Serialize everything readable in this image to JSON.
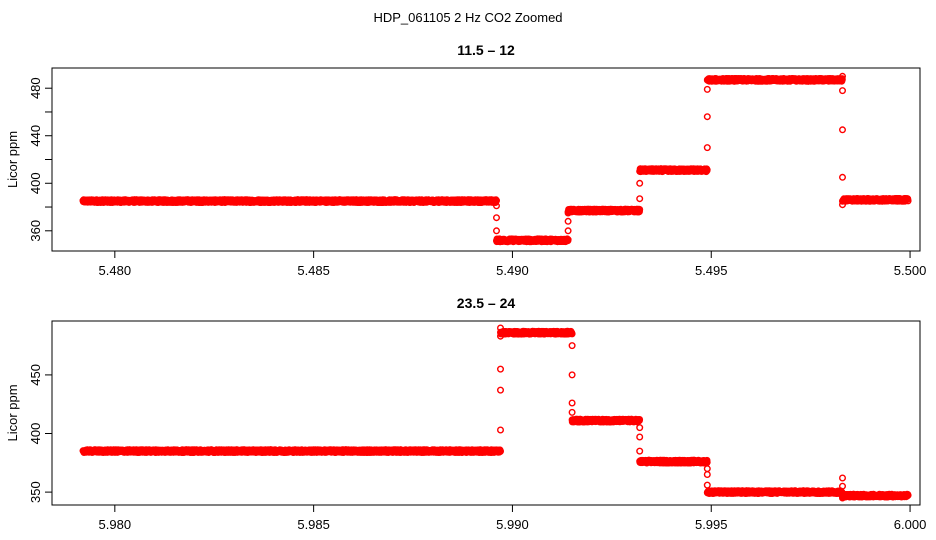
{
  "title": "HDP_061105  2 Hz CO2 Zoomed",
  "marker_color": "#ff0000",
  "chart_data": [
    {
      "type": "scatter",
      "title": "11.5 – 12",
      "xlabel": "",
      "ylabel": "Licor ppm",
      "xlim": [
        5.47842,
        5.50025
      ],
      "ylim": [
        343,
        497
      ],
      "xticks": [
        5.48,
        5.485,
        5.49,
        5.495,
        5.5
      ],
      "xtick_labels": [
        "5.480",
        "5.485",
        "5.490",
        "5.495",
        "5.500"
      ],
      "yticks": [
        360,
        380,
        400,
        420,
        440,
        460,
        480
      ],
      "ytick_labels": [
        "360",
        "",
        "400",
        "",
        "440",
        "",
        "480"
      ],
      "grid": false,
      "plateaus": [
        {
          "x_start": 5.4792,
          "x_end": 5.4896,
          "y": 385
        },
        {
          "x_start": 5.4896,
          "x_end": 5.4914,
          "y": 352
        },
        {
          "x_start": 5.4914,
          "x_end": 5.4932,
          "y": 377
        },
        {
          "x_start": 5.4932,
          "x_end": 5.4949,
          "y": 411
        },
        {
          "x_start": 5.4949,
          "x_end": 5.4983,
          "y": 487
        },
        {
          "x_start": 5.4983,
          "x_end": 5.49995,
          "y": 386
        }
      ],
      "transition_points": {
        "x": [
          5.4896,
          5.4896,
          5.4896,
          5.4914,
          5.4914,
          5.4914,
          5.4932,
          5.4932,
          5.4949,
          5.4949,
          5.4949,
          5.4983,
          5.4983,
          5.4983,
          5.4983,
          5.4983
        ],
        "y": [
          381,
          371,
          360,
          360,
          368,
          375,
          387,
          400,
          430,
          456,
          479,
          490,
          478,
          445,
          405,
          382
        ]
      }
    },
    {
      "type": "scatter",
      "title": "23.5 – 24",
      "xlabel": "",
      "ylabel": "Licor ppm",
      "xlim": [
        5.97842,
        6.00025
      ],
      "ylim": [
        339,
        496
      ],
      "xticks": [
        5.98,
        5.985,
        5.99,
        5.995,
        6.0
      ],
      "xtick_labels": [
        "5.980",
        "5.985",
        "5.990",
        "5.995",
        "6.000"
      ],
      "yticks": [
        350,
        400,
        450
      ],
      "ytick_labels": [
        "350",
        "400",
        "450"
      ],
      "grid": false,
      "plateaus": [
        {
          "x_start": 5.9792,
          "x_end": 5.9897,
          "y": 385
        },
        {
          "x_start": 5.9897,
          "x_end": 5.9915,
          "y": 486
        },
        {
          "x_start": 5.9915,
          "x_end": 5.9932,
          "y": 411
        },
        {
          "x_start": 5.9932,
          "x_end": 5.9949,
          "y": 376
        },
        {
          "x_start": 5.9949,
          "x_end": 5.9983,
          "y": 350
        },
        {
          "x_start": 5.9983,
          "x_end": 5.99995,
          "y": 347
        }
      ],
      "transition_points": {
        "x": [
          5.9897,
          5.9897,
          5.9897,
          5.9897,
          5.9897,
          5.9915,
          5.9915,
          5.9915,
          5.9915,
          5.9932,
          5.9932,
          5.9932,
          5.9949,
          5.9949,
          5.9949,
          5.9983,
          5.9983,
          5.9983
        ],
        "y": [
          403,
          437,
          455,
          483,
          490,
          475,
          450,
          426,
          418,
          405,
          397,
          385,
          370,
          365,
          356,
          362,
          345,
          355
        ]
      }
    }
  ]
}
